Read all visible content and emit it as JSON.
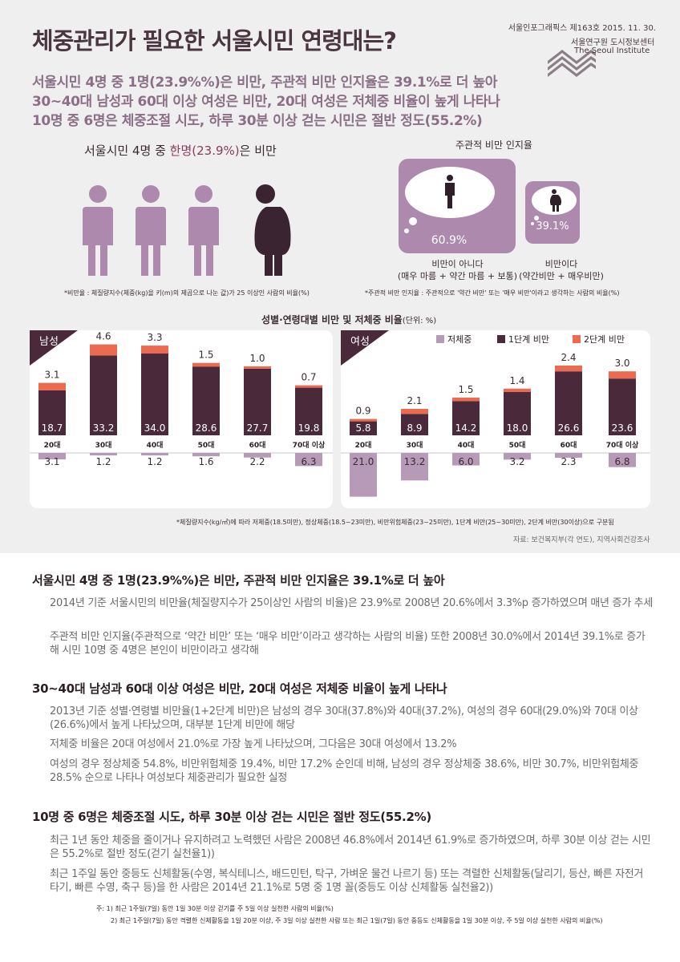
{
  "header": {
    "title": "체중관리가 필요한 서울시민 연령대는?",
    "publication": "서울인포그래픽스 제163호 2015. 11. 30.",
    "org_ko": "서울연구원 도시정보센터",
    "org_en": "The Seoul Institute",
    "headlines": [
      "서울시민 4명 중 1명(23.9%%)은 비만, 주관적 비만 인지율은 39.1%로 더 높아",
      "30~40대 남성과 60대 이상 여성은 비만, 20대 여성은 저체중 비율이 높게 나타나",
      "10명 중 6명은 체중조절 시도, 하루 30분 이상 걷는 시민은 절반 정도(55.2%)"
    ]
  },
  "obesity_rate": {
    "heading_pre": "서울시민 4명 중 ",
    "heading_acc": "한명(23.9%)",
    "heading_post": "은 비만",
    "note": "*비만율 : 체질량지수(체중(kg)을 키(m)의 제곱으로 나눈 값)가 25 이상인 사람의 비율(%)",
    "colors": {
      "normal": "#ad8aad",
      "obese": "#3a2431"
    }
  },
  "perception": {
    "title": "주관적 비만 인지율",
    "not_obese_value": "60.9%",
    "not_obese_label1": "비만이 아니다",
    "not_obese_label2": "(매우 마름 + 약간 마름 + 보통)",
    "obese_value": "39.1%",
    "obese_label1": "비만이다",
    "obese_label2": "(약간비만 + 매우비만)",
    "note": "*주관적 비만 인지율 : 주관적으로 '약간 비만' 또는 '매우 비만'이라고 생각하는 사람의 비율(%)"
  },
  "chart_data": {
    "type": "bar",
    "title": "성별·연령대별 비만 및 저체중 비율",
    "unit": "(단위: %)",
    "legend": [
      "저체중",
      "1단계 비만",
      "2단계 비만"
    ],
    "legend_placement": "top-right",
    "colors": {
      "underweight": "#b79ab8",
      "stage1": "#4a2a3a",
      "stage2": "#ec6a50"
    },
    "groups": [
      {
        "name": "남성",
        "categories": [
          "20대",
          "30대",
          "40대",
          "50대",
          "60대",
          "70대 이상"
        ],
        "stage1": [
          18.7,
          33.2,
          34.0,
          28.6,
          27.7,
          19.8
        ],
        "stage2": [
          3.1,
          4.6,
          3.3,
          1.5,
          1.0,
          0.7
        ],
        "underweight": [
          3.1,
          1.2,
          1.2,
          1.6,
          2.2,
          6.3
        ]
      },
      {
        "name": "여성",
        "categories": [
          "20대",
          "30대",
          "40대",
          "50대",
          "60대",
          "70대 이상"
        ],
        "stage1": [
          5.8,
          8.9,
          14.2,
          18.0,
          26.6,
          23.6
        ],
        "stage2": [
          0.9,
          2.1,
          1.5,
          1.4,
          2.4,
          3.0
        ],
        "underweight": [
          21.0,
          13.2,
          6.0,
          3.2,
          2.3,
          6.8
        ]
      }
    ],
    "footnote": "*체질량지수(kg/㎡)에 따라 저체중(18.5미만), 정상체중(18.5~23미만), 비만위험체중(23~25미만), 1단계 비만(25~30미만), 2단계 비만(30이상)으로 구분됨",
    "source": "자료: 보건복지부(각 연도), 지역사회건강조사"
  },
  "body": {
    "sections": [
      {
        "heading": "서울시민 4명 중 1명(23.9%%)은 비만, 주관적 비만 인지율은 39.1%로 더 높아",
        "paras": [
          "2014년 기준 서울시민의 비만율(체질량지수가 25이상인 사람의 비율)은 23.9%로 2008년 20.6%에서 3.3%p 증가하였으며 매년 증가 추세",
          "주관적 비만 인지율(주관적으로 ‘약간 비만’ 또는 ‘매우 비만’이라고 생각하는 사람의 비율) 또한 2008년 30.0%에서 2014년 39.1%로 증가해 시민 10명 중 4명은 본인이 비만이라고 생각해"
        ]
      },
      {
        "heading": "30~40대 남성과 60대 이상 여성은 비만, 20대 여성은 저체중 비율이 높게 나타나",
        "paras": [
          "2013년 기준 성별·연령별 비만율(1+2단계 비만)은 남성의 경우 30대(37.8%)와 40대(37.2%), 여성의 경우 60대(29.0%)와 70대 이상(26.6%)에서 높게 나타났으며, 대부분 1단계 비만에 해당",
          "저체중 비율은 20대 여성에서 21.0%로 가장 높게 나타났으며, 그다음은 30대 여성에서 13.2%",
          "여성의 경우 정상체중 54.8%, 비만위험체중 19.4%, 비만 17.2% 순인데 비해, 남성의 경우 정상체중 38.6%, 비만 30.7%, 비만위험체중 28.5% 순으로 나타나 여성보다 체중관리가 필요한 실정"
        ]
      },
      {
        "heading": "10명 중 6명은 체중조절 시도, 하루 30분 이상 걷는 시민은 절반 정도(55.2%)",
        "paras": [
          "최근 1년 동안 체중을 줄이거나 유지하려고 노력했던 사람은 2008년 46.8%에서 2014년 61.9%로 증가하였으며, 하루 30분 이상 걷는 시민은 55.2%로 절반 정도(걷기 실천율1))",
          "최근 1주일 동안 중등도 신체활동(수영, 복식테니스, 배드민턴, 탁구, 가벼운 물건 나르기 등) 또는 격렬한 신체활동(달리기, 등산, 빠른 자전거 타기, 빠른 수영, 축구 등)을 한 사람은 2014년 21.1%로 5명 중 1명 꼴(중등도 이상 신체활동 실천율2))"
        ]
      }
    ],
    "notes": [
      "주:  1) 최근 1주일(7일) 동안 1일 30분 이상 걷기를 주 5일 이상 실천한 사람의 비율(%)",
      "2) 최근 1주일(7일) 동안 격렬한 신체활동을 1일 20분 이상, 주 3일 이상 실천한 사람 또는 최근 1일(7일) 동안 중등도 신체활동을 1일 30분 이상, 주 5일 이상 실천한 사람의 비율(%)"
    ]
  }
}
